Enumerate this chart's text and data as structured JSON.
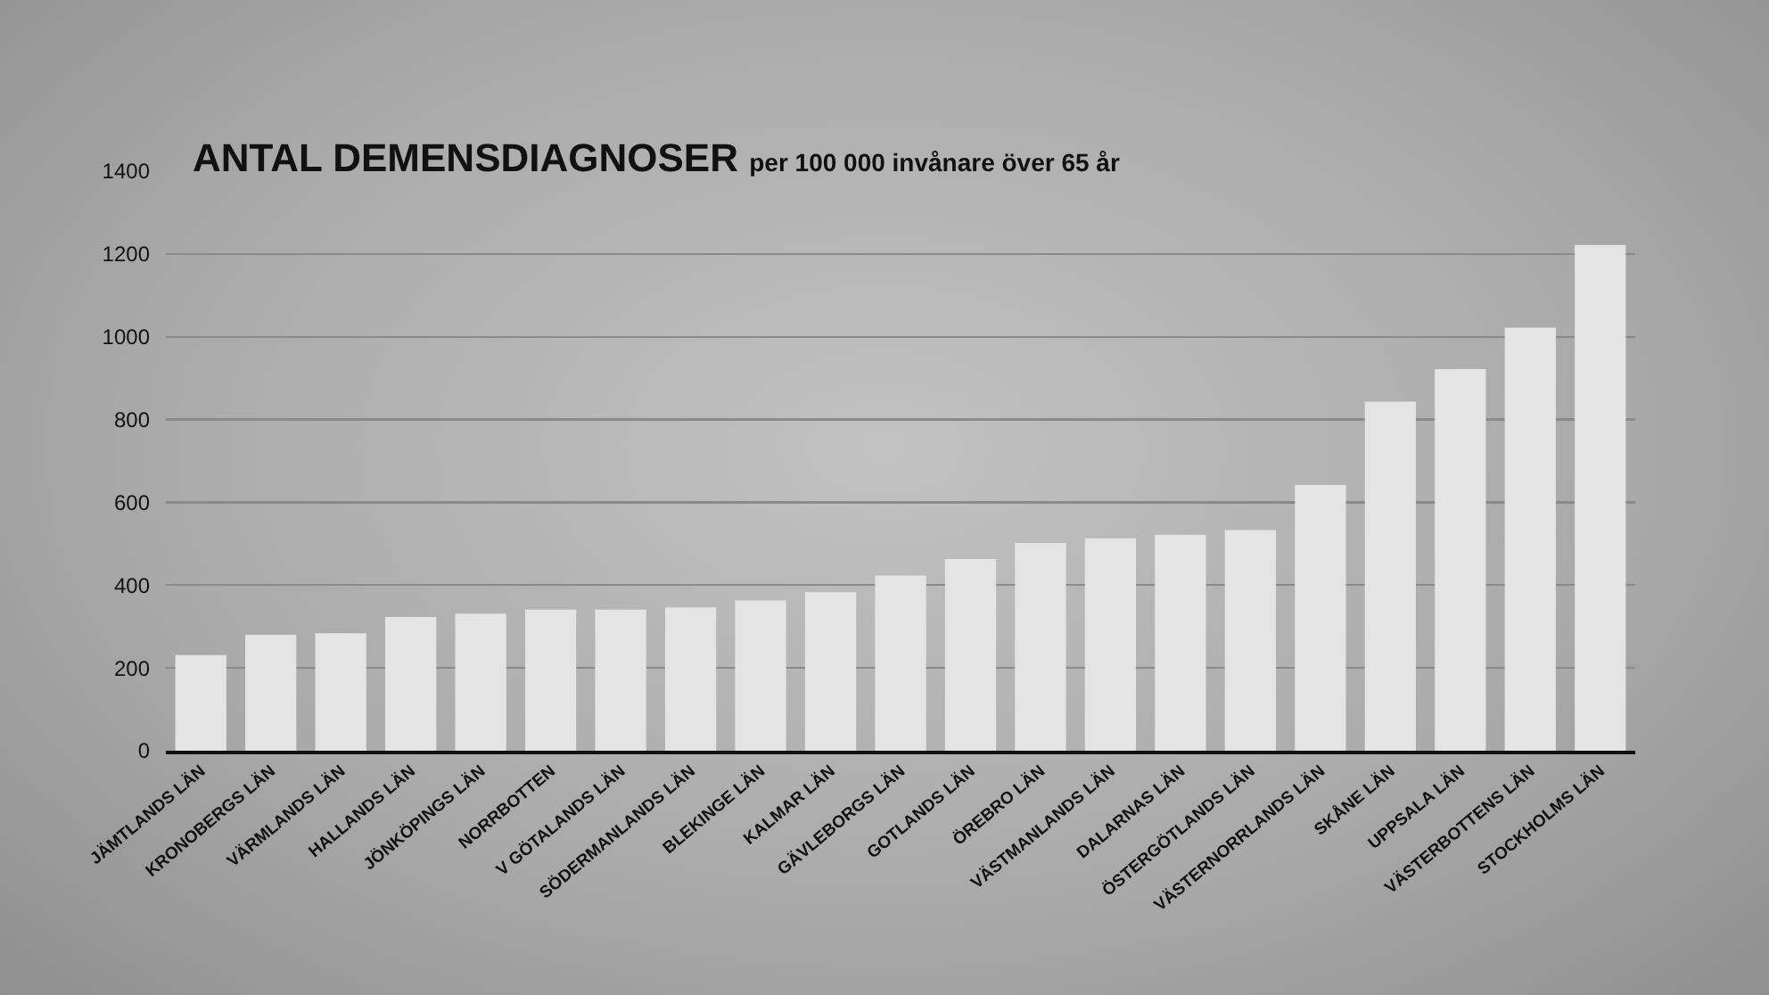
{
  "chart_data": {
    "type": "bar",
    "title": "ANTAL DEMENSDIAGNOSER",
    "subtitle": "per 100 000 invånare över 65 år",
    "categories": [
      "JÄMTLANDS LÄN",
      "KRONOBERGS LÄN",
      "VÄRMLANDS LÄN",
      "HALLANDS LÄN",
      "JÖNKÖPINGS LÄN",
      "NORRBOTTEN",
      "V GÖTALANDS LÄN",
      "SÖDERMANLANDS LÄN",
      "BLEKINGE LÄN",
      "KALMAR LÄN",
      "GÄVLEBORGS LÄN",
      "GOTLANDS LÄN",
      "ÖREBRO LÄN",
      "VÄSTMANLANDS LÄN",
      "DALARNAS LÄN",
      "ÖSTERGÖTLANDS LÄN",
      "VÄSTERNORRLANDS LÄN",
      "SKÅNE LÄN",
      "UPPSALA LÄN",
      "VÄSTERBOTTENS LÄN",
      "STOCKHOLMS LÄN"
    ],
    "values": [
      231,
      280,
      284,
      323,
      331,
      341,
      341,
      346,
      363,
      383,
      423,
      463,
      502,
      513,
      522,
      533,
      642,
      843,
      922,
      1022,
      1222
    ],
    "color": "#e4e4e4",
    "ylim": [
      0,
      1400
    ],
    "yticks": [
      0,
      200,
      400,
      600,
      800,
      1000,
      1200,
      1400
    ],
    "grid": "y"
  }
}
